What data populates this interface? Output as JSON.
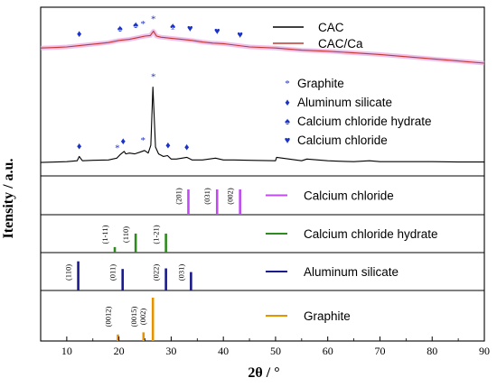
{
  "chart_data": {
    "type": "line",
    "xlabel": "2θ / °",
    "ylabel": "Itensity / a.u.",
    "xlim": [
      5,
      90
    ],
    "xticks": [
      "10",
      "20",
      "30",
      "40",
      "50",
      "60",
      "70",
      "80",
      "90"
    ],
    "grid": false,
    "series": [
      {
        "name": "CAC",
        "color": "#000000",
        "x": [
          5,
          8,
          10,
          12,
          12.4,
          13,
          15,
          18,
          19.6,
          20.2,
          21,
          21.3,
          22,
          23,
          24,
          24.9,
          25.6,
          26.1,
          26.5,
          27.0,
          27.6,
          28.5,
          29.3,
          30,
          31,
          33.0,
          34,
          36,
          38.5,
          40,
          42,
          45,
          50,
          50.2,
          55,
          56,
          60,
          62,
          65,
          68,
          70,
          75,
          80,
          85,
          90
        ],
        "values": [
          2,
          2.5,
          3,
          4,
          9,
          4,
          4.5,
          5,
          7,
          11,
          15,
          12,
          13,
          12,
          14,
          16,
          13,
          22,
          90,
          20,
          12,
          9,
          10,
          6,
          6,
          8,
          5,
          5,
          7,
          5,
          5,
          4.5,
          4,
          8,
          4,
          6,
          4,
          3.5,
          3,
          4,
          3,
          3,
          3,
          2.5,
          2.5
        ]
      },
      {
        "name": "CAC/Ca",
        "color": "#c0392b",
        "x": [
          5,
          8,
          10,
          12,
          14,
          16,
          18,
          20,
          22,
          24,
          25,
          26,
          26.6,
          27.2,
          28,
          30,
          32,
          34,
          36,
          38,
          40,
          45,
          50,
          55,
          60,
          65,
          70,
          75,
          80,
          85,
          90
        ],
        "values": [
          44,
          45,
          46,
          48,
          50,
          52,
          54,
          58,
          60,
          64,
          66,
          67,
          75,
          66,
          64,
          62,
          60,
          58,
          55,
          53,
          52,
          46,
          44,
          40,
          38,
          35,
          32,
          28,
          24,
          20,
          16
        ]
      }
    ],
    "legend": [
      "CAC",
      "CAC/Ca"
    ],
    "legend_position": "top-right",
    "marker_legend": [
      {
        "symbol": "*",
        "label": "Graphite"
      },
      {
        "symbol": "♦",
        "label": "Aluminum silicate"
      },
      {
        "symbol": "♠",
        "label": "Calcium chloride  hydrate"
      },
      {
        "symbol": "♥",
        "label": "Calcium chloride"
      }
    ],
    "cac_markers": [
      {
        "x": 12.4,
        "symbol": "♦"
      },
      {
        "x": 19.7,
        "symbol": "*"
      },
      {
        "x": 20.8,
        "symbol": "♦"
      },
      {
        "x": 24.6,
        "symbol": "*"
      },
      {
        "x": 26.6,
        "symbol": "*"
      },
      {
        "x": 29.4,
        "symbol": "♦"
      },
      {
        "x": 33.0,
        "symbol": "♦"
      }
    ],
    "cacca_markers": [
      {
        "x": 12.4,
        "symbol": "♦"
      },
      {
        "x": 20.2,
        "symbol": "♠"
      },
      {
        "x": 23.2,
        "symbol": "♠"
      },
      {
        "x": 24.6,
        "symbol": "*"
      },
      {
        "x": 26.6,
        "symbol": "*"
      },
      {
        "x": 30.3,
        "symbol": "♠"
      },
      {
        "x": 33.6,
        "symbol": "♥"
      },
      {
        "x": 38.8,
        "symbol": "♥"
      },
      {
        "x": 43.2,
        "symbol": "♥"
      }
    ],
    "reference_panels": [
      {
        "name": "Calcium chloride",
        "color": "#c04bf2",
        "peaks": [
          {
            "x": 33.3,
            "height": 0.8,
            "hkl": "(201)"
          },
          {
            "x": 38.8,
            "height": 0.8,
            "hkl": "(031)"
          },
          {
            "x": 43.2,
            "height": 0.8,
            "hkl": "(002)"
          }
        ]
      },
      {
        "name": "Calcium chloride  hydrate",
        "color": "#2e8b1e",
        "peaks": [
          {
            "x": 19.2,
            "height": 0.18,
            "hkl": "(1-11)"
          },
          {
            "x": 23.2,
            "height": 0.62,
            "hkl": "(110)"
          },
          {
            "x": 29.0,
            "height": 0.62,
            "hkl": "(1-21)"
          }
        ]
      },
      {
        "name": "Aluminum silicate",
        "color": "#1a1a8c",
        "peaks": [
          {
            "x": 12.2,
            "height": 0.95,
            "hkl": "(110)"
          },
          {
            "x": 20.7,
            "height": 0.7,
            "hkl": "(011)"
          },
          {
            "x": 29.0,
            "height": 0.72,
            "hkl": "(022)"
          },
          {
            "x": 33.8,
            "height": 0.6,
            "hkl": "(031)"
          }
        ]
      },
      {
        "name": "Graphite",
        "color": "#e59400",
        "peaks": [
          {
            "x": 19.8,
            "height": 0.15,
            "hkl": "(0012)"
          },
          {
            "x": 24.7,
            "height": 0.2,
            "hkl": "(0015)"
          },
          {
            "x": 26.5,
            "height": 1.0,
            "hkl": "(002)"
          }
        ]
      }
    ]
  }
}
